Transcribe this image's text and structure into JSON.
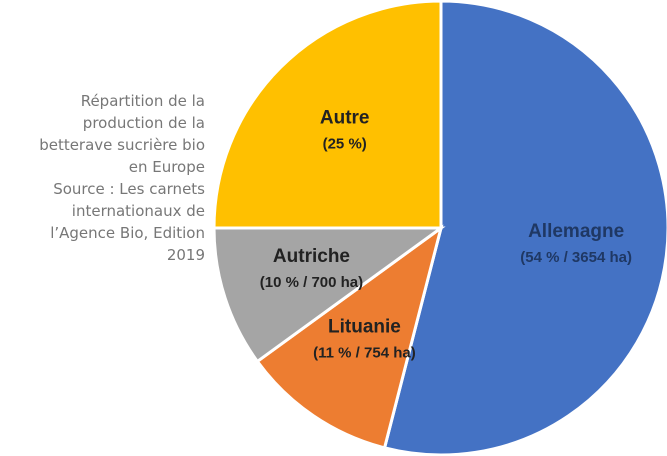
{
  "chart_data": {
    "type": "pie",
    "caption": [
      "Répartition de la production de la betterave sucrière bio en Europe",
      "Source : Les carnets internationaux de l’Agence Bio, Edition 2019"
    ],
    "categories": [
      "Allemagne",
      "Lituanie",
      "Autriche",
      "Autre"
    ],
    "values": [
      54,
      11,
      10,
      25
    ],
    "value_labels": [
      "(54 % / 3654 ha)",
      "(11 % / 754 ha)",
      "(10 % / 700 ha)",
      "(25 %)"
    ],
    "colors": [
      "#4472c4",
      "#ed7d31",
      "#a5a5a5",
      "#ffc000"
    ]
  }
}
